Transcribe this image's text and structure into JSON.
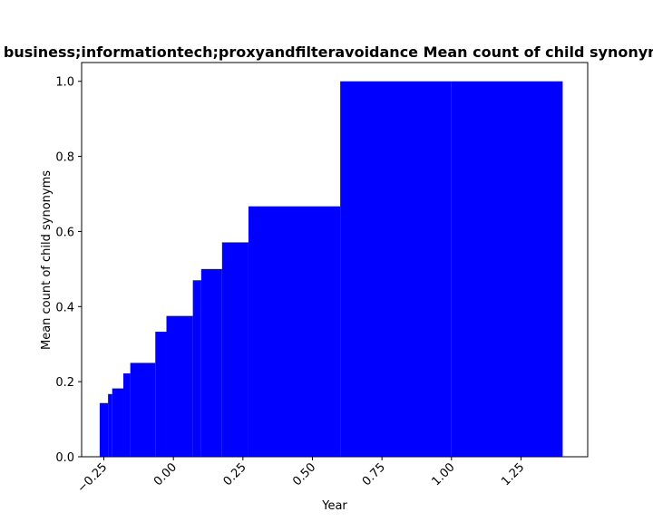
{
  "chart_data": {
    "type": "bar",
    "title": "to business;informationtech;proxyandfilteravoidance Mean count of child synonyms",
    "xlabel": "Year",
    "ylabel": "Mean count of child synonyms",
    "xlim": [
      -0.33,
      1.49
    ],
    "ylim": [
      0,
      1.05
    ],
    "xticks": [
      -0.25,
      0.0,
      0.25,
      0.5,
      0.75,
      1.0,
      1.25
    ],
    "xtick_labels": [
      "−0.25",
      "0.00",
      "0.25",
      "0.50",
      "0.75",
      "1.00",
      "1.25"
    ],
    "yticks": [
      0.0,
      0.2,
      0.4,
      0.6,
      0.8,
      1.0
    ],
    "ytick_labels": [
      "0.0",
      "0.2",
      "0.4",
      "0.6",
      "0.8",
      "1.0"
    ],
    "grid": false,
    "bar_color": "#0000ff",
    "bars": [
      {
        "x0": 1.0,
        "x1": 1.4,
        "value": 1.0
      },
      {
        "x0": 0.6,
        "x1": 1.0,
        "value": 1.0
      },
      {
        "x0": 0.27,
        "x1": 0.6,
        "value": 0.667
      },
      {
        "x0": 0.175,
        "x1": 0.27,
        "value": 0.571
      },
      {
        "x0": 0.1,
        "x1": 0.175,
        "value": 0.5
      },
      {
        "x0": 0.07,
        "x1": 0.1,
        "value": 0.47
      },
      {
        "x0": -0.025,
        "x1": 0.07,
        "value": 0.375
      },
      {
        "x0": -0.065,
        "x1": -0.025,
        "value": 0.333
      },
      {
        "x0": -0.155,
        "x1": -0.065,
        "value": 0.25
      },
      {
        "x0": -0.18,
        "x1": -0.155,
        "value": 0.222
      },
      {
        "x0": -0.22,
        "x1": -0.18,
        "value": 0.182
      },
      {
        "x0": -0.235,
        "x1": -0.22,
        "value": 0.167
      },
      {
        "x0": -0.265,
        "x1": -0.235,
        "value": 0.143
      }
    ]
  }
}
